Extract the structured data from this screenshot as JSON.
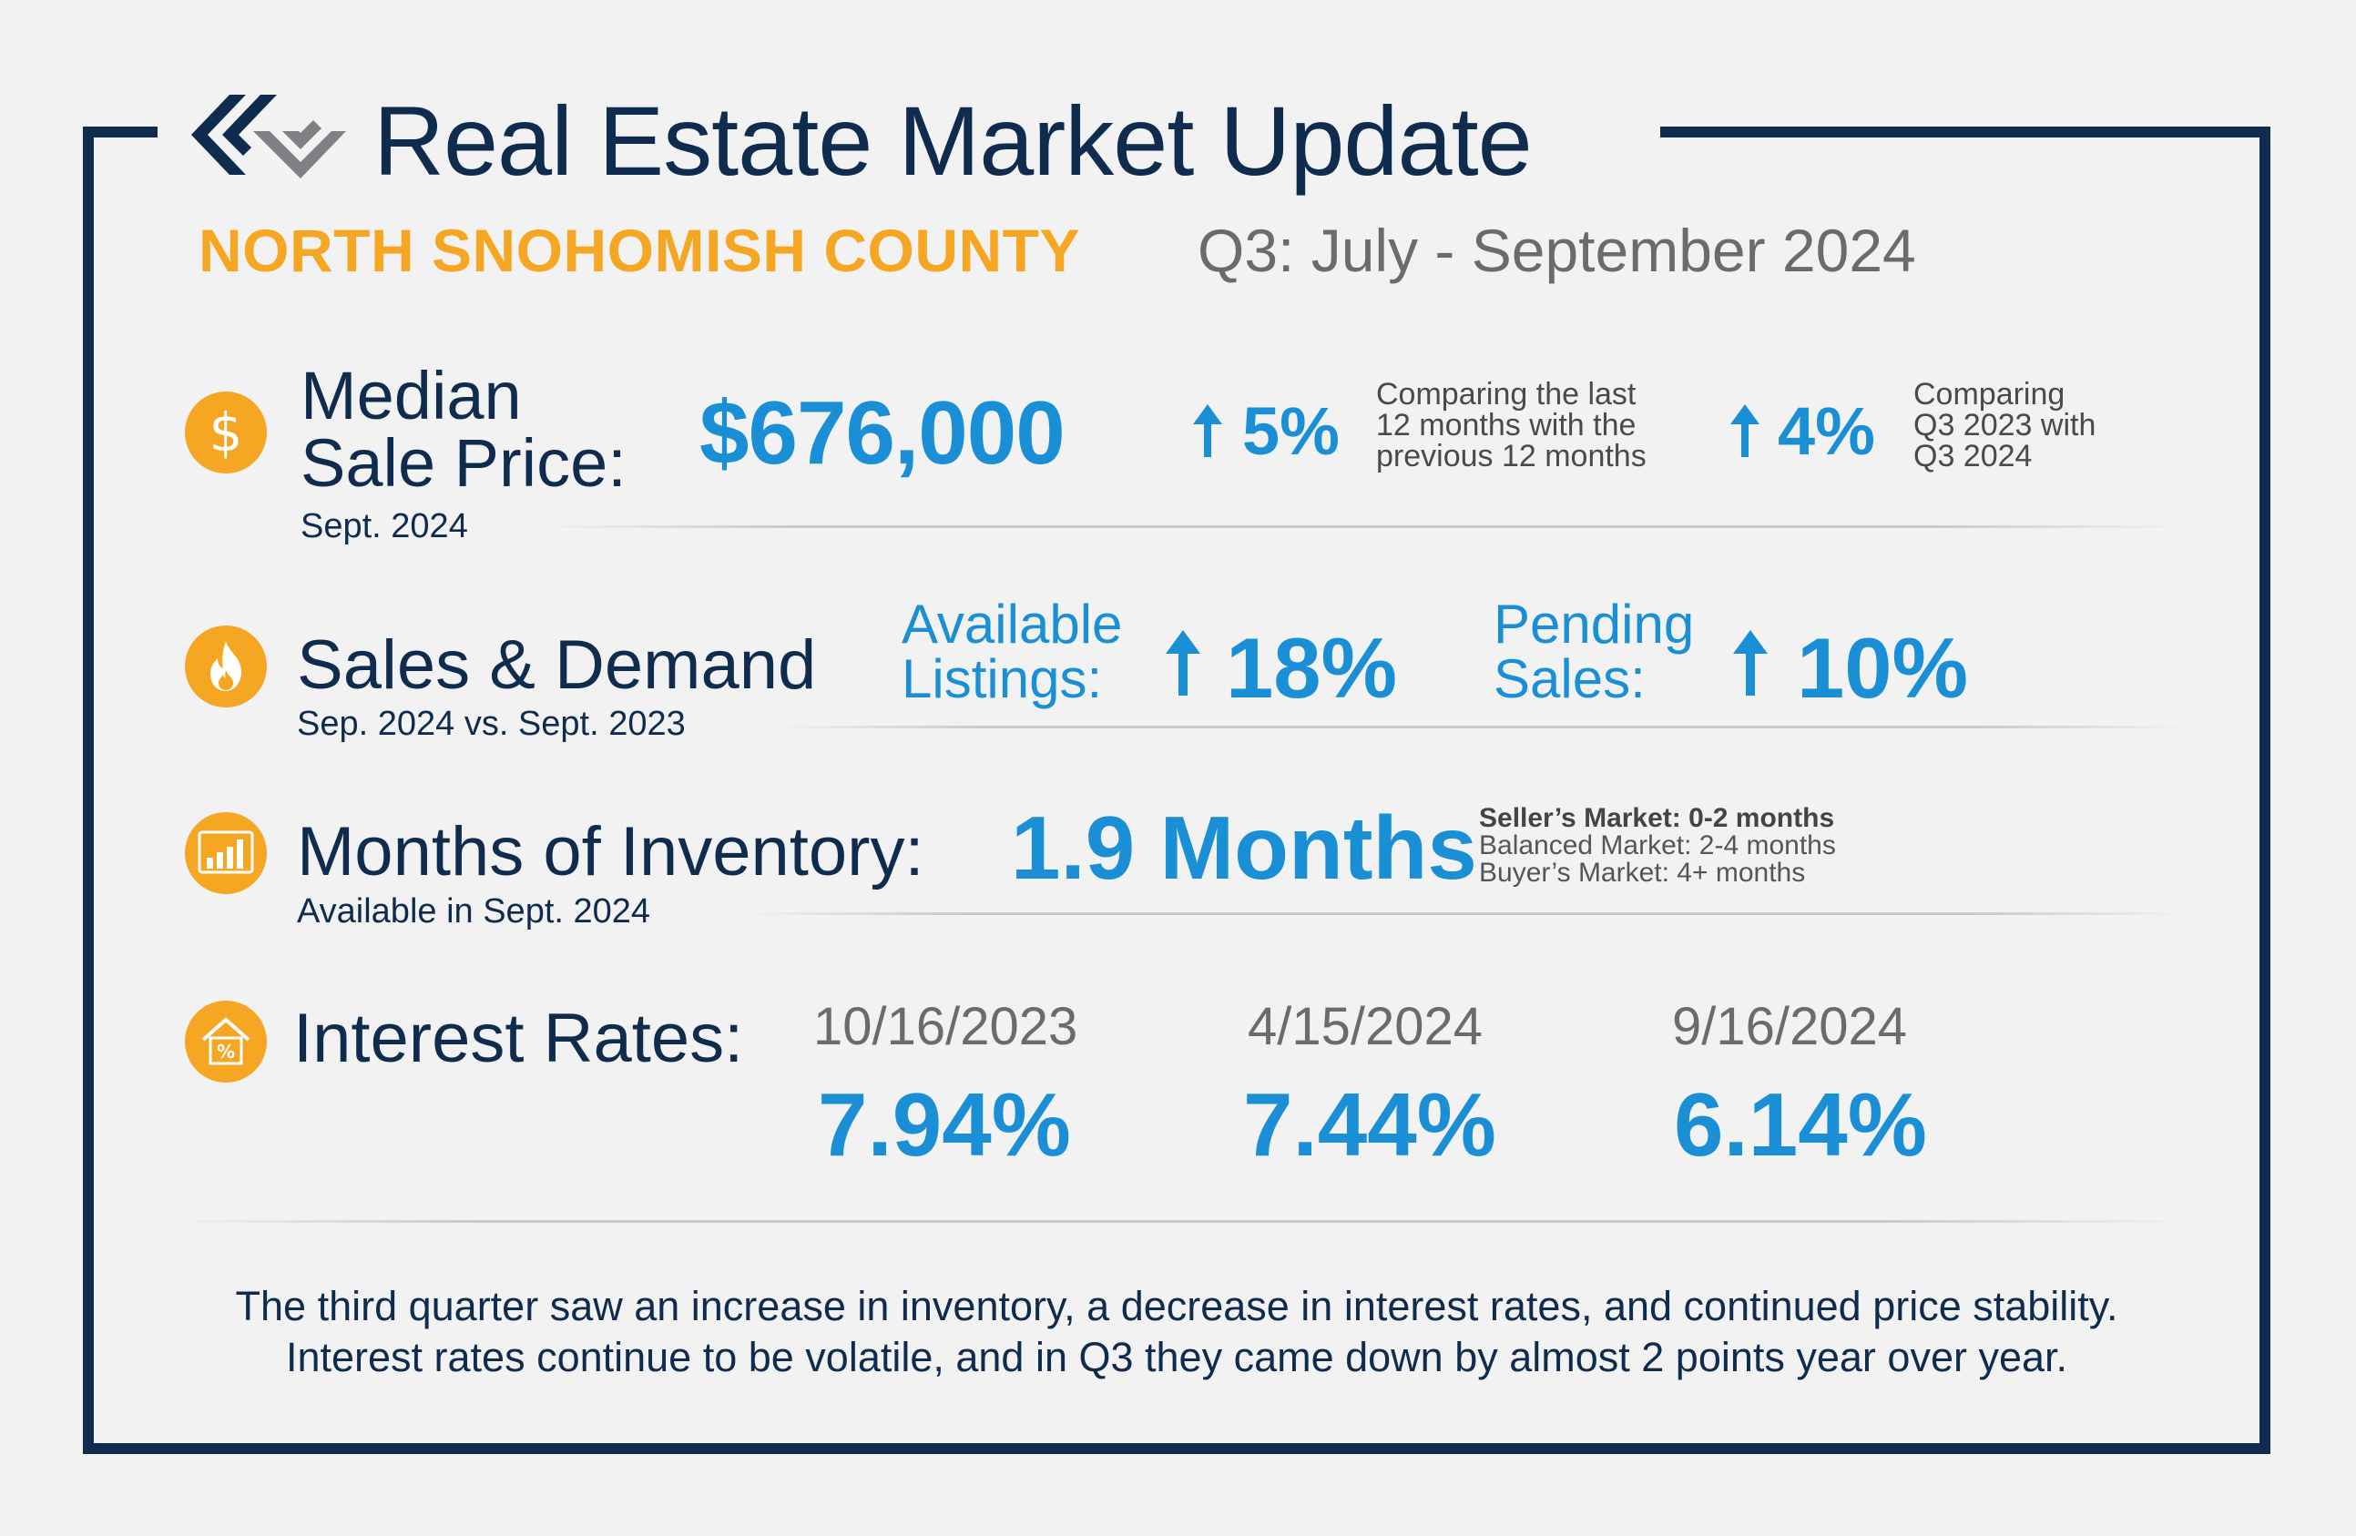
{
  "header": {
    "title": "Real Estate Market Update",
    "region": "NORTH SNOHOMISH COUNTY",
    "period": "Q3: July - September 2024"
  },
  "colors": {
    "navy": "#0f2c4e",
    "accent_orange": "#f5a623",
    "value_blue": "#1a8fd6",
    "muted_gray": "#6b6b6b"
  },
  "median_sale_price": {
    "icon": "dollar-icon",
    "label_line1": "Median",
    "label_line2": "Sale Price:",
    "sub": "Sept. 2024",
    "value": "$676,000",
    "change1": "5%",
    "note1": [
      "Comparing the last",
      "12 months with the",
      "previous 12 months"
    ],
    "change2": "4%",
    "note2": [
      "Comparing",
      "Q3 2023 with",
      "Q3 2024"
    ]
  },
  "sales_demand": {
    "icon": "flame-icon",
    "label": "Sales & Demand",
    "sub": "Sep. 2024 vs. Sept. 2023",
    "available_line1": "Available",
    "available_line2": "Listings:",
    "available_change": "18%",
    "pending_line1": "Pending",
    "pending_line2": "Sales:",
    "pending_change": "10%"
  },
  "inventory": {
    "icon": "bar-chart-icon",
    "label": "Months of Inventory:",
    "sub": "Available in Sept. 2024",
    "value": "1.9 Months",
    "notes": [
      "Seller’s Market: 0-2 months",
      "Balanced Market: 2-4 months",
      "Buyer’s Market: 4+ months"
    ]
  },
  "interest_rates": {
    "icon": "house-percent-icon",
    "label": "Interest Rates:",
    "points": [
      {
        "date": "10/16/2023",
        "rate": "7.94%"
      },
      {
        "date": "4/15/2024",
        "rate": "7.44%"
      },
      {
        "date": "9/16/2024",
        "rate": "6.14%"
      }
    ]
  },
  "summary": [
    "The third quarter saw an increase in inventory, a decrease in interest rates, and continued price stability.",
    "Interest rates continue to be volatile, and in Q3 they came down by almost 2 points year over year."
  ]
}
